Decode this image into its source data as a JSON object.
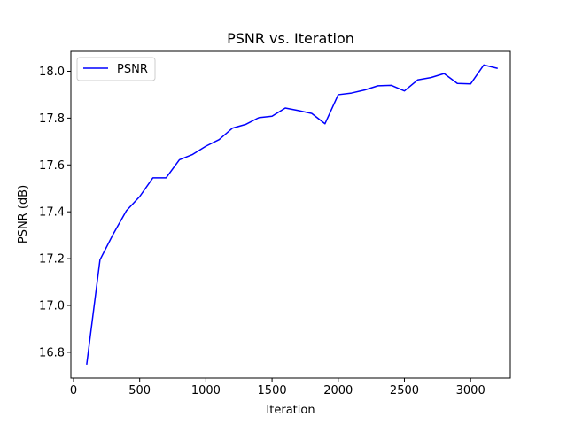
{
  "chart_data": {
    "type": "line",
    "title": "PSNR vs. Iteration",
    "xlabel": "Iteration",
    "ylabel": "PSNR (dB)",
    "xlim": [
      -20,
      3300
    ],
    "ylim": [
      16.69,
      18.085
    ],
    "x_ticks": [
      0,
      500,
      1000,
      1500,
      2000,
      2500,
      3000
    ],
    "x_tick_labels": [
      "0",
      "500",
      "1000",
      "1500",
      "2000",
      "2500",
      "3000"
    ],
    "y_ticks": [
      16.8,
      17.0,
      17.2,
      17.4,
      17.6,
      17.8,
      18.0
    ],
    "y_tick_labels": [
      "16.8",
      "17.0",
      "17.2",
      "17.4",
      "17.6",
      "17.8",
      "18.0"
    ],
    "grid": false,
    "legend": {
      "position": "upper-left"
    },
    "series": [
      {
        "name": "PSNR",
        "color": "#0000ff",
        "x": [
          100,
          200,
          300,
          400,
          500,
          600,
          700,
          800,
          900,
          1000,
          1100,
          1200,
          1300,
          1400,
          1500,
          1600,
          1700,
          1800,
          1900,
          2000,
          2100,
          2200,
          2300,
          2400,
          2500,
          2600,
          2700,
          2800,
          2900,
          3000,
          3100,
          3200
        ],
        "y": [
          16.75,
          17.195,
          17.305,
          17.405,
          17.465,
          17.545,
          17.545,
          17.622,
          17.645,
          17.68,
          17.708,
          17.757,
          17.773,
          17.802,
          17.808,
          17.843,
          17.832,
          17.82,
          17.776,
          17.9,
          17.907,
          17.92,
          17.938,
          17.94,
          17.916,
          17.963,
          17.973,
          17.99,
          17.948,
          17.946,
          18.027,
          18.013
        ]
      }
    ]
  }
}
